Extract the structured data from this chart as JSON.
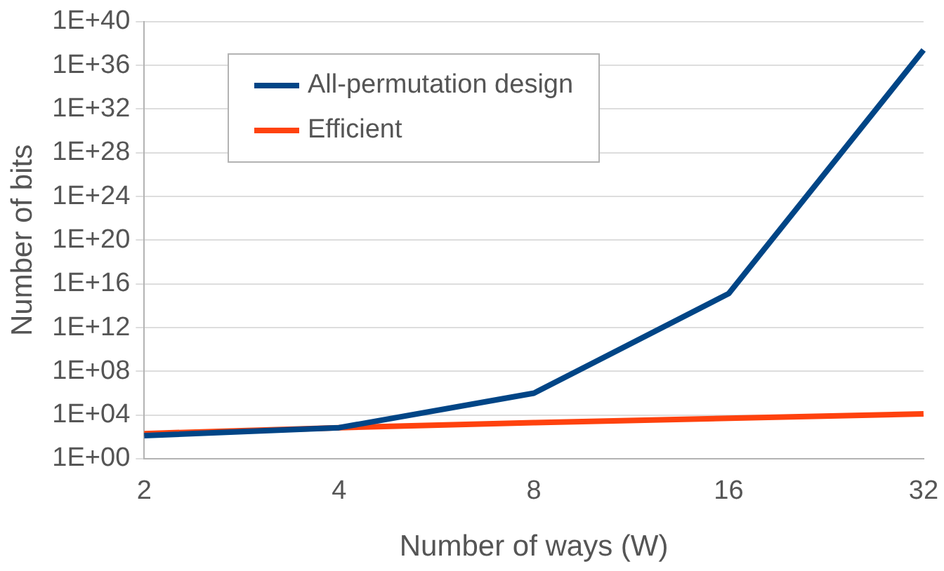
{
  "chart_data": {
    "type": "line",
    "xlabel": "Number of ways (W)",
    "ylabel": "Number of bits",
    "categories": [
      "2",
      "4",
      "8",
      "16",
      "32"
    ],
    "series": [
      {
        "name": "All-permutation design",
        "color": "#004586",
        "values": [
          130,
          700,
          1000000,
          1300000000000000.0,
          2.5e+37
        ]
      },
      {
        "name": "Efficient",
        "color": "#ff420e",
        "values": [
          200,
          700,
          2000,
          5000,
          13000
        ]
      }
    ],
    "log": true,
    "ylim": [
      1,
      1e+40
    ],
    "yticks": [
      {
        "value": 1,
        "label": "1E+00"
      },
      {
        "value": 10000.0,
        "label": "1E+04"
      },
      {
        "value": 100000000.0,
        "label": "1E+08"
      },
      {
        "value": 1000000000000.0,
        "label": "1E+12"
      },
      {
        "value": 1e+16,
        "label": "1E+16"
      },
      {
        "value": 1e+20,
        "label": "1E+20"
      },
      {
        "value": 1e+24,
        "label": "1E+24"
      },
      {
        "value": 1e+28,
        "label": "1E+28"
      },
      {
        "value": 1e+32,
        "label": "1E+32"
      },
      {
        "value": 1e+36,
        "label": "1E+36"
      },
      {
        "value": 1e+40,
        "label": "1E+40"
      }
    ],
    "grid": "y",
    "legend": "top left",
    "marker": "none",
    "line_style": "solid"
  }
}
